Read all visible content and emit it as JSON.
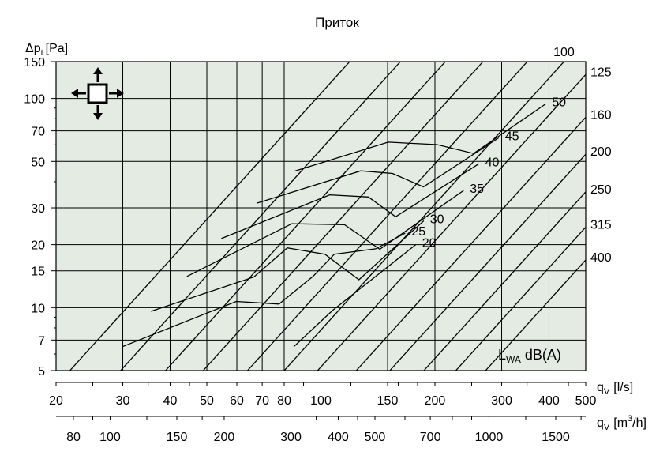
{
  "chart_data": {
    "type": "line",
    "title": "Приток",
    "ylabel": "Δp",
    "ylabel_sub": "t",
    "ylabel_unit": "[Pa]",
    "yscale": "log",
    "ylim": [
      5,
      150
    ],
    "y_ticks": [
      5,
      7,
      10,
      15,
      20,
      30,
      50,
      70,
      100,
      150
    ],
    "xscale": "log",
    "x_ls": {
      "label": "q",
      "label_sub": "V",
      "unit": "[l/s]",
      "lim": [
        20,
        500
      ],
      "ticks": [
        20,
        30,
        40,
        50,
        60,
        70,
        80,
        100,
        150,
        200,
        300,
        400,
        500
      ]
    },
    "x_m3h": {
      "label": "q",
      "label_sub": "V",
      "unit_pre": "[m",
      "unit_sup": "3",
      "unit_post": "/h]",
      "ticks": [
        80,
        100,
        150,
        200,
        300,
        400,
        500,
        700,
        1000,
        1500
      ]
    },
    "grid": true,
    "legend_text": "L",
    "legend_sub": "WA",
    "legend_unit": " dB(A)",
    "system_lines": [
      {
        "label": "",
        "q0": 21.75
      },
      {
        "label": "",
        "q0": 29.6
      },
      {
        "label": "",
        "q0": 38.9
      },
      {
        "label": "",
        "q0": 48.9
      },
      {
        "label": "",
        "q0": 64
      },
      {
        "label": "100",
        "q0": 80
      },
      {
        "label": "125",
        "q0": 98
      },
      {
        "label": "160",
        "q0": 124
      },
      {
        "label": "200",
        "q0": 152
      },
      {
        "label": "250",
        "q0": 187
      },
      {
        "label": "315",
        "q0": 227
      },
      {
        "label": "400",
        "q0": 272
      }
    ],
    "duct_sizes_visible": [
      "100",
      "125",
      "160",
      "200",
      "250",
      "315",
      "400"
    ],
    "noise_curves": [
      {
        "label": "20",
        "points": [
          [
            84.8,
            6.5
          ],
          [
            107.4,
            9.7
          ],
          [
            141.6,
            14.4
          ],
          [
            178,
            20.0
          ]
        ]
      },
      {
        "label": "25",
        "points": [
          [
            29.9,
            6.5
          ],
          [
            59.8,
            10.7
          ],
          [
            77.5,
            10.4
          ],
          [
            95.3,
            14.1
          ],
          [
            108.5,
            18.0
          ],
          [
            139.5,
            19.1
          ],
          [
            167,
            22.7
          ]
        ]
      },
      {
        "label": "30",
        "points": [
          [
            35.6,
            9.6
          ],
          [
            66.5,
            14.0
          ],
          [
            81.5,
            19.3
          ],
          [
            102.5,
            18.0
          ],
          [
            126,
            13.6
          ],
          [
            186.8,
            26.0
          ]
        ]
      },
      {
        "label": "35",
        "points": [
          [
            44.3,
            14.1
          ],
          [
            83.8,
            25.2
          ],
          [
            115.5,
            24.9
          ],
          [
            143,
            19.0
          ],
          [
            238,
            36.3
          ]
        ]
      },
      {
        "label": "40",
        "points": [
          [
            54.6,
            21.4
          ],
          [
            105.5,
            34.6
          ],
          [
            133.5,
            33.8
          ],
          [
            157.5,
            27.2
          ],
          [
            261.2,
            48.7
          ]
        ]
      },
      {
        "label": "45",
        "points": [
          [
            67.9,
            31.6
          ],
          [
            127.5,
            45.1
          ],
          [
            154.5,
            43.8
          ],
          [
            186.5,
            37.8
          ],
          [
            294.6,
            64.8
          ]
        ]
      },
      {
        "label": "50",
        "points": [
          [
            85.5,
            45.0
          ],
          [
            150.5,
            61.8
          ],
          [
            202.5,
            60.2
          ],
          [
            253,
            54.6
          ],
          [
            392,
            94.2
          ]
        ]
      }
    ]
  }
}
